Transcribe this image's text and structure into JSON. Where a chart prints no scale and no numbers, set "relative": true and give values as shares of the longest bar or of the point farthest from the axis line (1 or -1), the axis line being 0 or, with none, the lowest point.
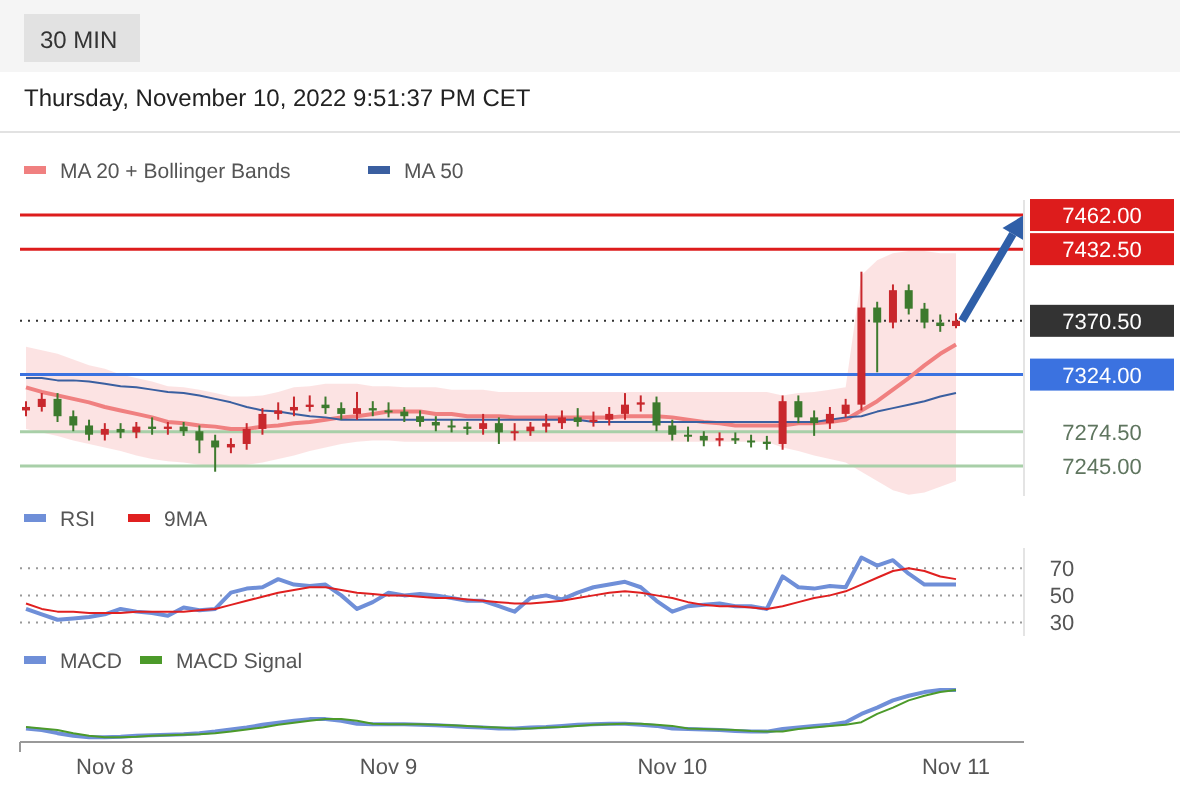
{
  "chart_data": [
    {
      "type": "candlestick",
      "title": "30 MIN",
      "subtitle": "Thursday, November 10, 2022 9:51:37 PM CET",
      "legend": "top left",
      "tick_labels": "y",
      "categories": [
        null,
        null,
        null,
        null,
        null,
        null,
        null,
        null,
        null,
        null,
        null,
        null,
        null,
        null,
        null,
        null,
        null,
        null,
        null,
        null,
        null,
        null,
        null,
        null,
        null,
        null,
        null,
        null,
        null,
        null,
        null,
        null,
        null,
        null,
        null,
        null,
        null,
        null,
        null,
        null,
        null,
        null,
        null,
        null,
        null,
        null,
        null,
        null,
        null,
        null,
        null,
        null,
        null,
        null,
        null,
        null,
        null,
        null,
        null,
        null
      ],
      "ylim": [
        7219,
        7475
      ],
      "yticks": [
        {
          "value": 7462,
          "label": "7462.00"
        },
        {
          "value": 7432.5,
          "label": "7432.50"
        },
        {
          "value": 7370.5,
          "label": "7370.50"
        },
        {
          "value": 7324,
          "label": "7324.00"
        },
        {
          "value": 7274.5,
          "label": "7274.50"
        },
        {
          "value": 7245,
          "label": "7245.00"
        }
      ],
      "ohlc": [
        [
          7293,
          7301,
          7288,
          7296
        ],
        [
          7296,
          7308,
          7292,
          7303
        ],
        [
          7303,
          7308,
          7283,
          7288
        ],
        [
          7288,
          7293,
          7275,
          7280
        ],
        [
          7280,
          7285,
          7267,
          7272
        ],
        [
          7272,
          7282,
          7267,
          7277
        ],
        [
          7277,
          7282,
          7269,
          7274
        ],
        [
          7274,
          7283,
          7269,
          7279
        ],
        [
          7279,
          7287,
          7272,
          7277
        ],
        [
          7277,
          7283,
          7272,
          7279
        ],
        [
          7279,
          7283,
          7271,
          7275
        ],
        [
          7275,
          7280,
          7256,
          7267
        ],
        [
          7267,
          7272,
          7240,
          7261
        ],
        [
          7261,
          7269,
          7256,
          7264
        ],
        [
          7264,
          7282,
          7259,
          7277
        ],
        [
          7277,
          7295,
          7272,
          7290
        ],
        [
          7290,
          7300,
          7285,
          7293
        ],
        [
          7293,
          7305,
          7288,
          7296
        ],
        [
          7296,
          7306,
          7292,
          7298
        ],
        [
          7298,
          7305,
          7290,
          7295
        ],
        [
          7295,
          7300,
          7285,
          7290
        ],
        [
          7290,
          7309,
          7285,
          7295
        ],
        [
          7295,
          7301,
          7288,
          7293
        ],
        [
          7293,
          7300,
          7287,
          7292
        ],
        [
          7292,
          7296,
          7283,
          7288
        ],
        [
          7288,
          7293,
          7279,
          7283
        ],
        [
          7283,
          7288,
          7275,
          7280
        ],
        [
          7280,
          7285,
          7274,
          7279
        ],
        [
          7279,
          7283,
          7272,
          7277
        ],
        [
          7277,
          7290,
          7272,
          7282
        ],
        [
          7282,
          7287,
          7264,
          7274
        ],
        [
          7274,
          7282,
          7267,
          7275
        ],
        [
          7275,
          7283,
          7271,
          7279
        ],
        [
          7279,
          7290,
          7274,
          7282
        ],
        [
          7282,
          7293,
          7277,
          7287
        ],
        [
          7287,
          7295,
          7279,
          7283
        ],
        [
          7283,
          7292,
          7279,
          7285
        ],
        [
          7285,
          7296,
          7280,
          7290
        ],
        [
          7290,
          7308,
          7285,
          7298
        ],
        [
          7298,
          7306,
          7292,
          7300
        ],
        [
          7300,
          7305,
          7275,
          7280
        ],
        [
          7280,
          7285,
          7267,
          7272
        ],
        [
          7272,
          7279,
          7266,
          7271
        ],
        [
          7271,
          7275,
          7262,
          7267
        ],
        [
          7267,
          7274,
          7262,
          7269
        ],
        [
          7269,
          7274,
          7264,
          7267
        ],
        [
          7267,
          7272,
          7261,
          7266
        ],
        [
          7266,
          7271,
          7259,
          7264
        ],
        [
          7264,
          7306,
          7259,
          7301
        ],
        [
          7301,
          7306,
          7282,
          7287
        ],
        [
          7287,
          7293,
          7271,
          7282
        ],
        [
          7282,
          7296,
          7277,
          7290
        ],
        [
          7290,
          7303,
          7287,
          7298
        ],
        [
          7298,
          7413,
          7293,
          7382
        ],
        [
          7382,
          7387,
          7326,
          7369
        ],
        [
          7369,
          7402,
          7364,
          7397
        ],
        [
          7397,
          7402,
          7376,
          7381
        ],
        [
          7381,
          7386,
          7364,
          7369
        ],
        [
          7369,
          7376,
          7361,
          7366
        ],
        [
          7366,
          7377,
          7364,
          7370.5
        ]
      ],
      "series": [
        {
          "type": "line",
          "name": "MA 20 + Bollinger Bands",
          "color": "#f08080",
          "values": [
            7313,
            7309,
            7306,
            7303,
            7300,
            7296,
            7293,
            7290,
            7287,
            7283,
            7282,
            7280,
            7279,
            7277,
            7277,
            7279,
            7280,
            7282,
            7283,
            7285,
            7287,
            7288,
            7290,
            7292,
            7292,
            7292,
            7290,
            7290,
            7288,
            7288,
            7288,
            7287,
            7287,
            7287,
            7287,
            7287,
            7287,
            7287,
            7288,
            7288,
            7288,
            7287,
            7285,
            7283,
            7282,
            7280,
            7280,
            7280,
            7280,
            7282,
            7282,
            7283,
            7285,
            7293,
            7301,
            7311,
            7321,
            7332,
            7342,
            7350
          ],
          "upper": [
            7348,
            7345,
            7342,
            7337,
            7332,
            7329,
            7324,
            7321,
            7318,
            7314,
            7313,
            7311,
            7308,
            7305,
            7305,
            7306,
            7309,
            7313,
            7314,
            7316,
            7316,
            7316,
            7314,
            7314,
            7313,
            7313,
            7313,
            7311,
            7311,
            7311,
            7309,
            7309,
            7309,
            7309,
            7309,
            7309,
            7309,
            7309,
            7309,
            7309,
            7309,
            7309,
            7309,
            7309,
            7309,
            7309,
            7309,
            7309,
            7306,
            7308,
            7309,
            7311,
            7313,
            7410,
            7423,
            7429,
            7431,
            7431,
            7429,
            7429
          ],
          "lower": [
            7277,
            7274,
            7271,
            7267,
            7264,
            7261,
            7258,
            7254,
            7251,
            7249,
            7248,
            7246,
            7245,
            7245,
            7246,
            7248,
            7251,
            7254,
            7258,
            7261,
            7264,
            7266,
            7267,
            7267,
            7266,
            7266,
            7266,
            7266,
            7266,
            7266,
            7266,
            7266,
            7266,
            7266,
            7266,
            7266,
            7266,
            7266,
            7266,
            7266,
            7266,
            7266,
            7266,
            7266,
            7266,
            7266,
            7266,
            7266,
            7261,
            7258,
            7254,
            7251,
            7248,
            7240,
            7232,
            7224,
            7220,
            7222,
            7227,
            7232
          ]
        },
        {
          "type": "line",
          "name": "MA 50",
          "color": "#3a5fa0",
          "values": [
            7321,
            7321,
            7319,
            7319,
            7318,
            7316,
            7314,
            7313,
            7311,
            7309,
            7308,
            7306,
            7303,
            7300,
            7296,
            7293,
            7292,
            7290,
            7288,
            7287,
            7285,
            7285,
            7285,
            7285,
            7285,
            7285,
            7285,
            7285,
            7285,
            7285,
            7285,
            7285,
            7285,
            7285,
            7285,
            7285,
            7283,
            7283,
            7283,
            7283,
            7283,
            7283,
            7283,
            7283,
            7283,
            7283,
            7283,
            7283,
            7283,
            7283,
            7283,
            7285,
            7287,
            7288,
            7292,
            7295,
            7298,
            7301,
            7305,
            7308
          ]
        }
      ],
      "ref_lines": [
        {
          "axis": "y",
          "value": 7462,
          "color": "#dd1c1c"
        },
        {
          "axis": "y",
          "value": 7432.5,
          "color": "#dd1c1c"
        },
        {
          "axis": "y",
          "value": 7370.5,
          "color": "#333333",
          "line_style": "dotted"
        },
        {
          "axis": "y",
          "value": 7324,
          "color": "#3b72e0"
        },
        {
          "axis": "y",
          "value": 7274.5,
          "color": "#a8cfa8"
        },
        {
          "axis": "y",
          "value": 7245,
          "color": "#a8cfa8"
        }
      ]
    },
    {
      "type": "line",
      "legend": "top left",
      "tick_labels": "y",
      "grid": "y",
      "categories": [
        null,
        null,
        null,
        null,
        null,
        null,
        null,
        null,
        null,
        null,
        null,
        null,
        null,
        null,
        null,
        null,
        null,
        null,
        null,
        null,
        null,
        null,
        null,
        null,
        null,
        null,
        null,
        null,
        null,
        null,
        null,
        null,
        null,
        null,
        null,
        null,
        null,
        null,
        null,
        null,
        null,
        null,
        null,
        null,
        null,
        null,
        null,
        null,
        null,
        null,
        null,
        null,
        null,
        null,
        null,
        null,
        null,
        null,
        null,
        null
      ],
      "ylim": [
        20,
        85
      ],
      "yticks": [
        70,
        50,
        30
      ],
      "series": [
        {
          "name": "RSI",
          "color": "#6f8fd8",
          "values": [
            40,
            36,
            32,
            33,
            34,
            36,
            40,
            38,
            37,
            35,
            41,
            39,
            40,
            52,
            55,
            56,
            62,
            58,
            57,
            58,
            50,
            40,
            45,
            52,
            50,
            51,
            50,
            48,
            46,
            46,
            42,
            38,
            48,
            50,
            47,
            52,
            56,
            58,
            60,
            56,
            46,
            38,
            42,
            43,
            44,
            42,
            42,
            40,
            64,
            56,
            55,
            57,
            56,
            78,
            72,
            76,
            66,
            58,
            58,
            58
          ]
        },
        {
          "name": "9MA",
          "color": "#e02020",
          "values": [
            44,
            40,
            38,
            38,
            37,
            37,
            37,
            38,
            38,
            38,
            38,
            39,
            40,
            43,
            46,
            49,
            52,
            54,
            56,
            56,
            54,
            52,
            51,
            50,
            50,
            49,
            48,
            48,
            47,
            46,
            45,
            44,
            44,
            45,
            46,
            48,
            50,
            52,
            53,
            52,
            50,
            48,
            45,
            43,
            42,
            42,
            41,
            40,
            42,
            45,
            48,
            50,
            53,
            58,
            63,
            68,
            70,
            68,
            64,
            62
          ]
        }
      ]
    },
    {
      "type": "line",
      "legend": "top left",
      "tick_labels": "x",
      "relative": true,
      "categories": [
        null,
        null,
        null,
        null,
        null,
        "Nov 8",
        null,
        null,
        null,
        null,
        null,
        null,
        null,
        null,
        null,
        null,
        null,
        null,
        null,
        null,
        null,
        null,
        null,
        "Nov 9",
        null,
        null,
        null,
        null,
        null,
        null,
        null,
        null,
        null,
        null,
        null,
        null,
        null,
        null,
        null,
        null,
        null,
        "Nov 10",
        null,
        null,
        null,
        null,
        null,
        null,
        null,
        null,
        null,
        null,
        null,
        null,
        null,
        null,
        null,
        null,
        null,
        "Nov 11"
      ],
      "series": [
        {
          "name": "MACD",
          "color": "#6f8fd8",
          "values": [
            0.26,
            0.23,
            0.17,
            0.12,
            0.09,
            0.09,
            0.1,
            0.12,
            0.13,
            0.14,
            0.15,
            0.17,
            0.2,
            0.24,
            0.28,
            0.33,
            0.37,
            0.41,
            0.44,
            0.44,
            0.41,
            0.35,
            0.34,
            0.34,
            0.34,
            0.33,
            0.32,
            0.31,
            0.29,
            0.28,
            0.26,
            0.26,
            0.28,
            0.29,
            0.31,
            0.33,
            0.34,
            0.35,
            0.35,
            0.33,
            0.31,
            0.26,
            0.25,
            0.24,
            0.23,
            0.21,
            0.2,
            0.2,
            0.25,
            0.28,
            0.31,
            0.33,
            0.38,
            0.54,
            0.66,
            0.8,
            0.89,
            0.96,
            1,
            1
          ]
        },
        {
          "name": "MACD Signal",
          "color": "#4c9a2a",
          "values": [
            0.29,
            0.26,
            0.23,
            0.17,
            0.12,
            0.09,
            0.09,
            0.1,
            0.12,
            0.13,
            0.14,
            0.15,
            0.17,
            0.2,
            0.24,
            0.28,
            0.33,
            0.37,
            0.41,
            0.44,
            0.44,
            0.41,
            0.35,
            0.34,
            0.34,
            0.34,
            0.33,
            0.32,
            0.31,
            0.29,
            0.28,
            0.26,
            0.26,
            0.28,
            0.29,
            0.31,
            0.33,
            0.34,
            0.35,
            0.35,
            0.33,
            0.31,
            0.26,
            0.25,
            0.24,
            0.23,
            0.21,
            0.2,
            0.2,
            0.25,
            0.28,
            0.31,
            0.33,
            0.38,
            0.54,
            0.66,
            0.8,
            0.89,
            0.96,
            1
          ]
        }
      ]
    }
  ]
}
